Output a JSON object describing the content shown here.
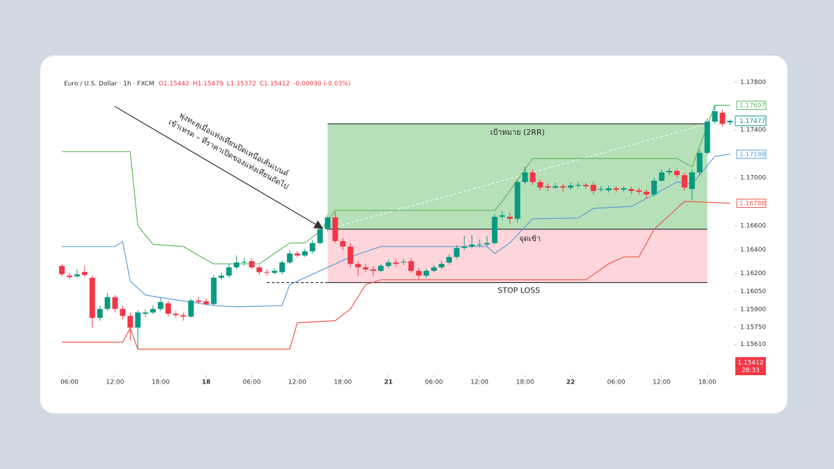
{
  "chart_data": {
    "type": "candlestick",
    "header": {
      "symbol": "Euro / U.S. Dollar · 1h · FXCM",
      "open": "O1.15442",
      "high": "H1.15479",
      "low": "L1.15372",
      "close": "C1.15412",
      "change": "-0.00030 (-0.03%)"
    },
    "x": [
      -1,
      0,
      1,
      2,
      3,
      4,
      5,
      6,
      7,
      8,
      9,
      10,
      11,
      12,
      13,
      14,
      15,
      16,
      17,
      18,
      19,
      20,
      21,
      22,
      23,
      24,
      25,
      26,
      27,
      28,
      29,
      30,
      31,
      32,
      33,
      34,
      35,
      36,
      37,
      38,
      39,
      40,
      41,
      42,
      43,
      44,
      45,
      46,
      47,
      48,
      49,
      50,
      51,
      52,
      53,
      54,
      55,
      56,
      57,
      58,
      59,
      60,
      61,
      62,
      63,
      64,
      65,
      66,
      67,
      68,
      69,
      70,
      71,
      72,
      73,
      74,
      75,
      76,
      77,
      78,
      79,
      80,
      81,
      82,
      83,
      84,
      85,
      86,
      87
    ],
    "open": [
      1.16264,
      1.16183,
      1.16177,
      1.16212,
      1.16165,
      1.15829,
      1.15904,
      1.16003,
      1.15904,
      1.15846,
      1.15748,
      1.15864,
      1.15875,
      1.15904,
      1.15951,
      1.15864,
      1.15852,
      1.1584,
      1.15974,
      1.15968,
      1.15945,
      1.16165,
      1.16183,
      1.16252,
      1.16293,
      1.16304,
      1.16252,
      1.16212,
      1.16206,
      1.16212,
      1.16293,
      1.16368,
      1.16351,
      1.16386,
      1.16455,
      1.16571,
      1.1667,
      1.16472,
      1.16426,
      1.16281,
      1.16252,
      1.16235,
      1.16223,
      1.16264,
      1.16293,
      1.16293,
      1.16304,
      1.16223,
      1.16183,
      1.16223,
      1.16252,
      1.16293,
      1.16339,
      1.16414,
      1.16426,
      1.16443,
      1.16443,
      1.16455,
      1.16675,
      1.16675,
      1.16658,
      1.16965,
      1.17046,
      1.16965,
      1.1693,
      1.16919,
      1.1693,
      1.16919,
      1.16936,
      1.16942,
      1.16942,
      1.16907,
      1.16896,
      1.16913,
      1.16901,
      1.16907,
      1.16896,
      1.16884,
      1.16861,
      1.16977,
      1.17046,
      1.17058,
      1.17023,
      1.16907,
      1.17046,
      1.17209,
      1.1747,
      1.17545,
      1.17464
    ],
    "high": [
      1.16281,
      1.16206,
      1.16235,
      1.16264,
      1.16183,
      1.15933,
      1.16038,
      1.1602,
      1.15933,
      1.15875,
      1.15893,
      1.15899,
      1.15933,
      1.16003,
      1.15974,
      1.15887,
      1.15875,
      1.15991,
      1.16003,
      1.15991,
      1.16188,
      1.16206,
      1.16281,
      1.16351,
      1.16328,
      1.16328,
      1.1627,
      1.16235,
      1.16246,
      1.1631,
      1.16397,
      1.16386,
      1.16409,
      1.16478,
      1.16594,
      1.16687,
      1.16716,
      1.16496,
      1.16455,
      1.16304,
      1.16281,
      1.16264,
      1.16281,
      1.16316,
      1.16322,
      1.16322,
      1.16328,
      1.16246,
      1.16241,
      1.1627,
      1.16304,
      1.16362,
      1.16438,
      1.16513,
      1.16525,
      1.16484,
      1.16513,
      1.16699,
      1.16722,
      1.16716,
      1.16988,
      1.17093,
      1.1707,
      1.16988,
      1.16954,
      1.16959,
      1.16948,
      1.16965,
      1.16965,
      1.16959,
      1.16965,
      1.1693,
      1.16936,
      1.1693,
      1.1693,
      1.16925,
      1.16919,
      1.16907,
      1.17,
      1.1707,
      1.17081,
      1.17075,
      1.17046,
      1.1707,
      1.17238,
      1.17499,
      1.17614,
      1.17568,
      1.17487
    ],
    "low": [
      1.16177,
      1.16154,
      1.16165,
      1.16171,
      1.15748,
      1.15806,
      1.15887,
      1.15875,
      1.15817,
      1.15643,
      1.15568,
      1.1584,
      1.15858,
      1.15887,
      1.1584,
      1.15829,
      1.15806,
      1.15829,
      1.15945,
      1.15933,
      1.15933,
      1.16148,
      1.16165,
      1.16235,
      1.1627,
      1.16235,
      1.16188,
      1.16183,
      1.16194,
      1.16194,
      1.16281,
      1.16333,
      1.16339,
      1.16368,
      1.16443,
      1.16554,
      1.16455,
      1.16397,
      1.16252,
      1.16183,
      1.16212,
      1.16177,
      1.16212,
      1.16246,
      1.16258,
      1.1627,
      1.16206,
      1.16154,
      1.16165,
      1.16212,
      1.16235,
      1.16275,
      1.16322,
      1.16397,
      1.16409,
      1.1642,
      1.16426,
      1.16443,
      1.16652,
      1.16617,
      1.16629,
      1.16948,
      1.16942,
      1.16896,
      1.1689,
      1.16907,
      1.16884,
      1.16901,
      1.16919,
      1.16913,
      1.16861,
      1.16884,
      1.16878,
      1.16878,
      1.16884,
      1.16867,
      1.16861,
      1.16826,
      1.16843,
      1.16965,
      1.17023,
      1.17,
      1.16896,
      1.16814,
      1.17023,
      1.17198,
      1.17452,
      1.17429,
      1.17441
    ],
    "close": [
      1.16194,
      1.16171,
      1.16194,
      1.16188,
      1.15829,
      1.15904,
      1.16003,
      1.15904,
      1.15846,
      1.15748,
      1.15875,
      1.15875,
      1.15904,
      1.15962,
      1.15864,
      1.15852,
      1.1584,
      1.15974,
      1.15962,
      1.15945,
      1.16165,
      1.16183,
      1.16252,
      1.16293,
      1.16299,
      1.16252,
      1.16212,
      1.16206,
      1.16223,
      1.16293,
      1.16368,
      1.16351,
      1.16386,
      1.16455,
      1.16571,
      1.1667,
      1.16472,
      1.16426,
      1.16281,
      1.16252,
      1.16235,
      1.16223,
      1.16264,
      1.16293,
      1.16281,
      1.16299,
      1.16223,
      1.16183,
      1.16223,
      1.16252,
      1.16281,
      1.16339,
      1.16414,
      1.16426,
      1.16443,
      1.16443,
      1.16455,
      1.16675,
      1.16687,
      1.16658,
      1.16965,
      1.17046,
      1.16965,
      1.16919,
      1.16919,
      1.1693,
      1.16919,
      1.16936,
      1.16942,
      1.1693,
      1.1689,
      1.16907,
      1.16913,
      1.16901,
      1.16913,
      1.1689,
      1.16884,
      1.16861,
      1.16977,
      1.17046,
      1.17058,
      1.17023,
      1.16919,
      1.17046,
      1.17209,
      1.1747,
      1.17557,
      1.17452,
      1.17477
    ],
    "up_color": "#089981",
    "down_color": "#f23645",
    "close_tag_color": "#089981",
    "lines": [
      {
        "color": "#5cb85c",
        "x": [
          -1,
          8,
          9,
          11,
          15,
          17,
          19,
          25,
          29,
          31,
          33,
          35,
          56,
          57,
          61,
          80,
          82,
          85,
          87
        ],
        "values": [
          1.1722,
          1.1722,
          1.166,
          1.16443,
          1.16426,
          1.16351,
          1.16281,
          1.16281,
          1.16455,
          1.16455,
          1.16554,
          1.16728,
          1.16728,
          1.16803,
          1.17162,
          1.17162,
          1.17093,
          1.17607,
          1.17607
        ]
      },
      {
        "color": "#5b9bd5",
        "x": [
          -1,
          6,
          7,
          8,
          10,
          14,
          19,
          22,
          28,
          29,
          31,
          34,
          36,
          37,
          41,
          55,
          56,
          58,
          61,
          67,
          69,
          74,
          77,
          80,
          82,
          85,
          87
        ],
        "values": [
          1.16426,
          1.16426,
          1.16467,
          1.16136,
          1.1602,
          1.1598,
          1.15933,
          1.15922,
          1.15933,
          1.16107,
          1.16165,
          1.16252,
          1.1631,
          1.16339,
          1.16426,
          1.16426,
          1.16368,
          1.16455,
          1.16658,
          1.16664,
          1.16745,
          1.16762,
          1.16861,
          1.16965,
          1.16948,
          1.1718,
          1.17198
        ]
      },
      {
        "color": "#e8574a",
        "x": [
          -1,
          7,
          8,
          9,
          29,
          30,
          35,
          37,
          39,
          41,
          68,
          71,
          73,
          75,
          77,
          81,
          87
        ],
        "values": [
          1.15626,
          1.15626,
          1.15742,
          1.15568,
          1.15568,
          1.15788,
          1.15806,
          1.15904,
          1.16107,
          1.16148,
          1.16148,
          1.16281,
          1.16339,
          1.16339,
          1.16571,
          1.16803,
          1.16788
        ]
      }
    ],
    "position": {
      "x_start": 34,
      "x_end": 84,
      "stop_line_start": 26,
      "target": 1.17452,
      "entry": 1.16571,
      "stop": 1.16125,
      "target_label": "เป้าหมาย (2RR)",
      "entry_label": "จุดเข้า",
      "stop_label": "STOP LOSS"
    },
    "annotation": [
      "พุ่งทะลุเมื่อแท่งเทียนปิดเหนือเส้นเบนด์",
      "เข้าเทรด – ที่ราคาเปิดของแท่งเทียนถัดไป"
    ],
    "last_price": {
      "price": 1.15412,
      "countdown": "28:33"
    },
    "xlim": [
      -1.1,
      87.6
    ],
    "xticks": [
      {
        "value": 0,
        "label": "06:00"
      },
      {
        "value": 6,
        "label": "12:00"
      },
      {
        "value": 12,
        "label": "18:00"
      },
      18,
      {
        "value": 24,
        "label": "06:00"
      },
      {
        "value": 30,
        "label": "12:00"
      },
      {
        "value": 36,
        "label": "18:00"
      },
      {
        "value": 42,
        "label": "21"
      },
      {
        "value": 48,
        "label": "06:00"
      },
      {
        "value": 54,
        "label": "12:00"
      },
      {
        "value": 60,
        "label": "18:00"
      },
      {
        "value": 66,
        "label": "22"
      },
      {
        "value": 72,
        "label": "06:00"
      },
      {
        "value": 78,
        "label": "12:00"
      },
      {
        "value": 84,
        "label": "18:00"
      }
    ],
    "ylim": [
      1.1535,
      1.1786
    ],
    "yticks": [
      {
        "value": 1.178,
        "label": "1.17800"
      },
      {
        "value": 1.174,
        "label": "1.17400"
      },
      {
        "value": 1.17,
        "label": "1.17000"
      },
      {
        "value": 1.166,
        "label": "1.16600"
      },
      {
        "value": 1.164,
        "label": "1.16400"
      },
      {
        "value": 1.162,
        "label": "1.16200"
      },
      {
        "value": 1.1605,
        "label": "1.16050"
      },
      {
        "value": 1.159,
        "label": "1.15900"
      },
      {
        "value": 1.1575,
        "label": "1.15750"
      },
      {
        "value": 1.1561,
        "label": "1.15610"
      }
    ],
    "grid": false
  }
}
